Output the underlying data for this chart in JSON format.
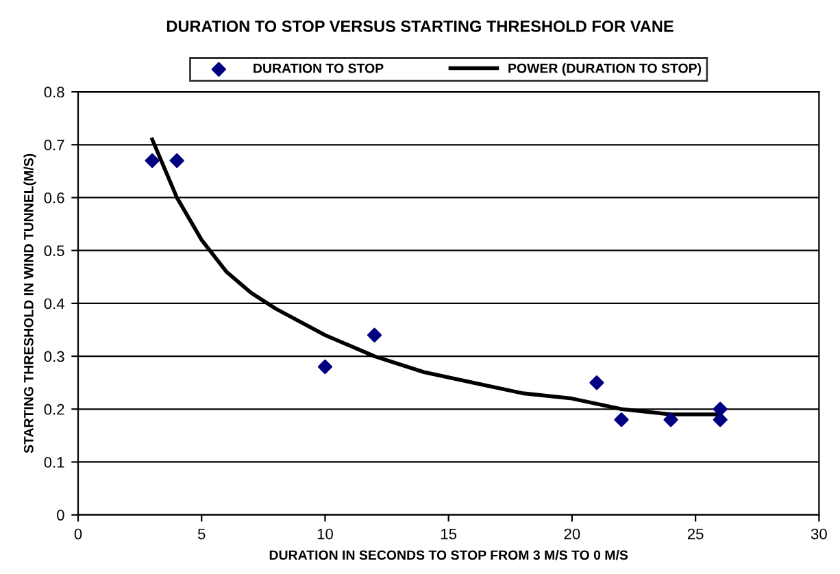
{
  "chart_data": {
    "type": "scatter",
    "title": "DURATION TO STOP VERSUS STARTING THRESHOLD FOR VANE",
    "xlabel": "DURATION IN SECONDS TO STOP FROM 3 M/S TO 0 M/S",
    "ylabel": "STARTING THRESHOLD IN WIND TUNNEL(M/S)",
    "series": [
      {
        "name": "DURATION TO STOP",
        "color": "#000080",
        "marker": "diamond",
        "x": [
          3,
          4,
          10,
          12,
          21,
          22,
          24,
          26,
          26
        ],
        "values": [
          0.67,
          0.67,
          0.28,
          0.34,
          0.25,
          0.18,
          0.18,
          0.2,
          0.18
        ]
      },
      {
        "name": "POWER (DURATION TO STOP)",
        "type": "line",
        "color": "#000000",
        "marker": "none",
        "line_style": "solid",
        "x": [
          3,
          4,
          5,
          6,
          7,
          8,
          10,
          12,
          14,
          16,
          18,
          20,
          22,
          24,
          26
        ],
        "values": [
          0.71,
          0.6,
          0.52,
          0.46,
          0.42,
          0.39,
          0.34,
          0.3,
          0.27,
          0.25,
          0.23,
          0.22,
          0.2,
          0.19,
          0.19
        ]
      }
    ],
    "xlim": [
      0,
      30
    ],
    "xticks": [
      0,
      5,
      10,
      15,
      20,
      25,
      30
    ],
    "ylim": [
      0,
      0.8
    ],
    "yticks": [
      0,
      0.1,
      0.2,
      0.3,
      0.4,
      0.5,
      0.6,
      0.7,
      0.8
    ],
    "grid": "y",
    "legend": "top"
  }
}
